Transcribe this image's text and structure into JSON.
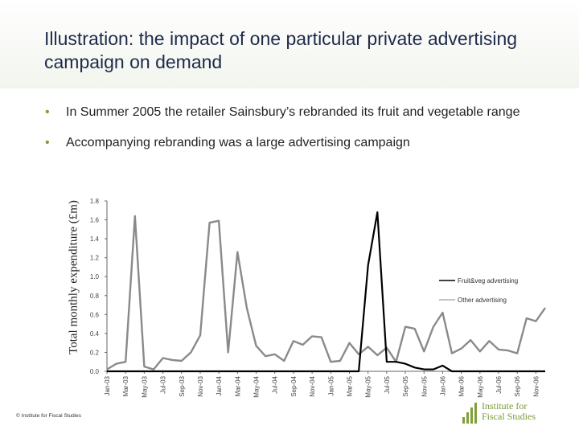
{
  "slide": {
    "title": "Illustration: the impact of one particular private advertising campaign on demand",
    "bullets": [
      "In Summer 2005 the retailer Sainsbury’s rebranded its fruit and vegetable range",
      "Accompanying rebranding was a large advertising campaign"
    ],
    "bullet_glyph": "•",
    "footer": "© Institute for Fiscal Studies",
    "logo": {
      "line1": "Institute for",
      "line2": "Fiscal Studies"
    },
    "accent_color": "#7f9f3a"
  },
  "chart_data": {
    "type": "line",
    "ylabel": "Total monthly expenditure (£m)",
    "ylim": [
      0,
      1.8
    ],
    "yticks": [
      0.0,
      0.2,
      0.4,
      0.6,
      0.8,
      1.0,
      1.2,
      1.4,
      1.6,
      1.8
    ],
    "ytick_labels": [
      "0.0",
      "0.2",
      "0.4",
      "0.6",
      "0.8",
      "1.0",
      "1.2",
      "1.4",
      "1.6",
      "1.8"
    ],
    "grid": false,
    "legend_position": "right",
    "x_tick_labels": [
      "Jan-03",
      "Mar-03",
      "May-03",
      "Jul-03",
      "Sep-03",
      "Nov-03",
      "Jan-04",
      "Mar-04",
      "May-04",
      "Jul-04",
      "Sep-04",
      "Nov-04",
      "Jan-05",
      "Mar-05",
      "May-05",
      "Jul-05",
      "Sep-05",
      "Nov-05",
      "Jan-06",
      "Mar-06",
      "May-06",
      "Jul-06",
      "Sep-06",
      "Nov-06"
    ],
    "series": [
      {
        "name": "Fruit&veg advertising",
        "color": "#000000",
        "values": [
          0.0,
          0.0,
          0.0,
          0.0,
          0.0,
          0.0,
          0.0,
          0.0,
          0.0,
          0.0,
          0.0,
          0.0,
          0.0,
          0.0,
          0.0,
          0.0,
          0.0,
          0.0,
          0.0,
          0.0,
          0.0,
          0.0,
          0.0,
          0.0,
          0.0,
          0.0,
          0.0,
          0.0,
          0.0,
          0.0,
          0.0,
          0.0,
          0.0,
          0.0,
          0.0,
          0.0,
          0.0,
          0.0,
          0.0,
          0.0,
          0.0,
          0.0,
          0.0,
          0.0,
          0.0,
          0.0,
          0.0,
          0.0,
          0.0,
          0.0,
          0.0,
          0.0,
          0.0,
          0.0,
          0.0,
          0.0,
          0.08,
          0.08,
          0.02,
          0.0,
          0.0,
          0.0,
          0.0,
          0.0,
          0.0,
          0.0,
          0.0,
          0.0,
          0.0,
          0.0,
          0.0,
          0.0,
          0.0,
          0.0,
          0.0,
          0.0,
          0.0,
          0.0,
          0.0,
          0.0,
          0.0,
          0.0,
          0.0,
          0.0,
          0.0,
          0.0,
          0.0,
          0.0,
          0.0,
          0.0,
          0.0,
          0.0,
          0.0,
          0.0,
          0.0,
          0.0,
          0.0,
          0.0,
          0.0,
          0.0,
          0.0,
          0.0,
          0.0,
          0.0,
          0.0,
          0.0,
          0.0,
          0.0,
          0.0,
          0.0,
          0.0,
          0.0,
          0.0,
          0.0,
          0.0,
          0.0,
          0.0,
          0.0,
          0.0,
          0.0,
          0.0,
          0.0,
          0.0,
          0.0,
          0.0,
          0.0,
          0.0,
          0.0,
          0.0,
          0.0,
          0.0,
          0.0,
          0.0,
          0.0,
          0.0,
          0.0,
          0.0,
          0.0,
          0.0,
          0.0,
          0.0,
          0.0,
          0.0,
          0.0
        ]
      }
    ]
  }
}
